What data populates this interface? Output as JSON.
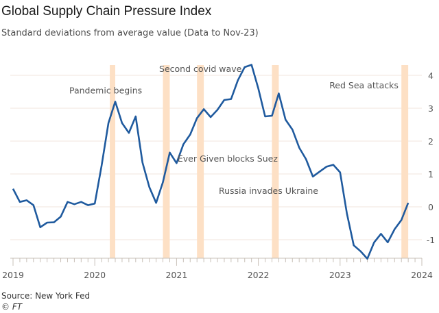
{
  "chart_data": {
    "type": "line",
    "title": "Global Supply Chain Pressure Index",
    "subtitle": "Standard deviations from average value (Data to Nov-23)",
    "xlabel": "",
    "ylabel": "",
    "x_start": "Jan-2019",
    "x_unit": "month",
    "x_ticks": [
      "2019",
      "2020",
      "2021",
      "2022",
      "2023",
      "2024"
    ],
    "xlim_months": [
      0,
      60
    ],
    "ylim": [
      -1.6,
      4.4
    ],
    "y_ticks": [
      -1,
      0,
      1,
      2,
      3,
      4
    ],
    "y_tick_labels": [
      "-1",
      "0",
      "1",
      "2",
      "3",
      "4"
    ],
    "grid": true,
    "series": [
      {
        "name": "Global Supply Chain Pressure Index",
        "color": "#1f5a9e",
        "values": [
          0.55,
          0.15,
          0.2,
          0.05,
          -0.62,
          -0.48,
          -0.47,
          -0.3,
          0.15,
          0.08,
          0.15,
          0.05,
          0.1,
          1.25,
          2.55,
          3.2,
          2.55,
          2.25,
          2.75,
          1.35,
          0.6,
          0.12,
          0.75,
          1.65,
          1.33,
          1.9,
          2.2,
          2.7,
          2.97,
          2.73,
          2.95,
          3.25,
          3.28,
          3.85,
          4.25,
          4.32,
          3.6,
          2.75,
          2.77,
          3.45,
          2.65,
          2.35,
          1.8,
          1.45,
          0.92,
          1.07,
          1.22,
          1.28,
          1.05,
          -0.2,
          -1.17,
          -1.35,
          -1.58,
          -1.08,
          -0.82,
          -1.08,
          -0.68,
          -0.4,
          0.12
        ]
      }
    ],
    "event_bands": [
      {
        "start": 14.2,
        "end": 15.0,
        "label": "Pandemic begins",
        "label_x": 13.6,
        "label_y": 3.45
      },
      {
        "start": 22.0,
        "end": 23.0,
        "label": "Second covid wave",
        "label_x": 27.5,
        "label_y": 4.1
      },
      {
        "start": 27.0,
        "end": 28.0,
        "label": "",
        "label_x": 0,
        "label_y": 0
      },
      {
        "start": 38.0,
        "end": 39.0,
        "label": "Russia invades Ukraine",
        "label_x": 37.5,
        "label_y": 0.4
      },
      {
        "start": 57.0,
        "end": 58.0,
        "label": "Red Sea attacks",
        "label_x": 51.5,
        "label_y": 3.6
      }
    ],
    "extra_annotations": [
      {
        "label": "Ever Given blocks Suez",
        "x": 31.5,
        "y": 1.37
      }
    ],
    "band_color": "#fde0c5"
  },
  "footer": {
    "source": "Source: New York Fed",
    "credit": "© FT"
  }
}
